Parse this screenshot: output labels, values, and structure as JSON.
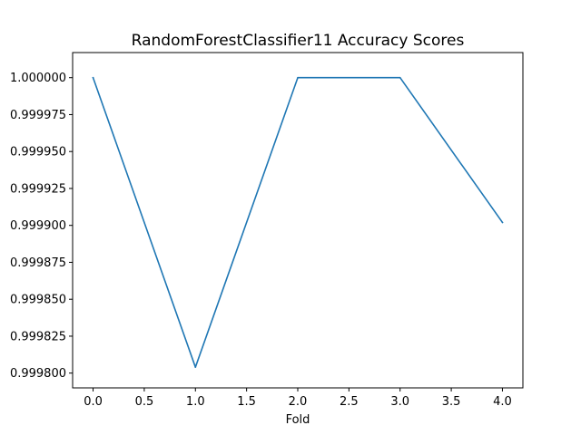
{
  "chart_data": {
    "type": "line",
    "title": "RandomForestClassifier11 Accuracy Scores",
    "xlabel": "Fold",
    "ylabel": "",
    "xlim": [
      -0.2,
      4.2
    ],
    "ylim": [
      0.99979,
      1.000017
    ],
    "x": [
      0,
      1,
      2,
      3,
      4
    ],
    "series": [
      {
        "values": [
          1.0,
          0.999804,
          1.0,
          1.0,
          0.999902
        ]
      }
    ],
    "xticks": [
      "0.0",
      "0.5",
      "1.0",
      "1.5",
      "2.0",
      "2.5",
      "3.0",
      "3.5",
      "4.0"
    ],
    "xtick_values": [
      0,
      0.5,
      1,
      1.5,
      2,
      2.5,
      3,
      3.5,
      4
    ],
    "yticks": [
      "0.999800",
      "0.999825",
      "0.999850",
      "0.999875",
      "0.999900",
      "0.999925",
      "0.999950",
      "0.999975",
      "1.000000"
    ],
    "ytick_values": [
      0.9998,
      0.999825,
      0.99985,
      0.999875,
      0.9999,
      0.999925,
      0.99995,
      0.999975,
      1.0
    ],
    "grid": false,
    "colors": {
      "line": "#1f77b4",
      "axes": "#000000",
      "background": "#ffffff"
    }
  }
}
